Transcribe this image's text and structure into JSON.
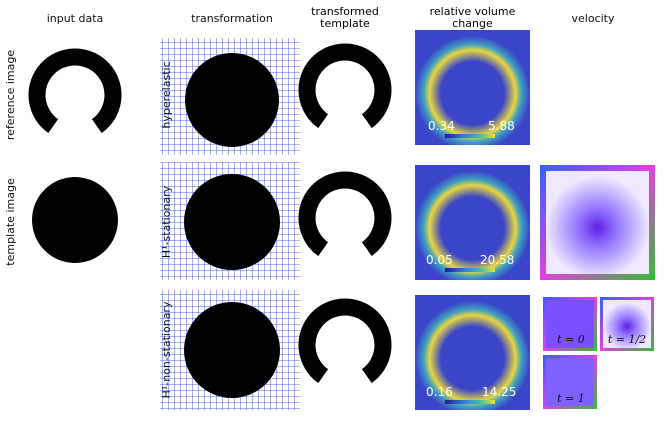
{
  "column_headers": [
    "input data",
    "transformation",
    "transformed template",
    "relative volume change",
    "velocity"
  ],
  "row_labels": [
    "reference image",
    "template image"
  ],
  "methods": [
    "hyperelastic",
    "H¹-stationary",
    "H¹-non-stationary"
  ],
  "colorbars": [
    {
      "min": "0.34",
      "max": "5.88"
    },
    {
      "min": "0.05",
      "max": "20.58"
    },
    {
      "min": "0.16",
      "max": "14.25"
    }
  ],
  "time_labels": [
    "t = 0",
    "t = 1/2",
    "t = 1"
  ]
}
